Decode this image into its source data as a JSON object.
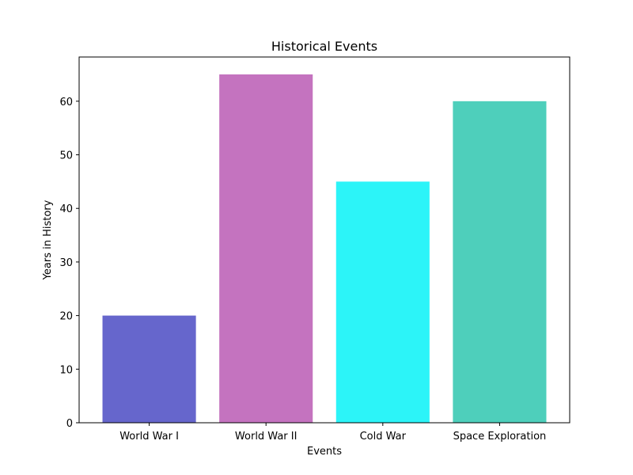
{
  "chart_data": {
    "type": "bar",
    "title": "Historical Events",
    "xlabel": "Events",
    "ylabel": "Years in History",
    "categories": [
      "World War I",
      "World War II",
      "Cold War",
      "Space Exploration"
    ],
    "values": [
      20,
      65,
      45,
      60
    ],
    "colors": [
      "#6666cc",
      "#c473bf",
      "#2cf4f8",
      "#4ecfbb"
    ],
    "ylim": [
      0,
      68.25
    ],
    "yticks": [
      0,
      10,
      20,
      30,
      40,
      50,
      60
    ],
    "grid": false,
    "legend": "none"
  }
}
